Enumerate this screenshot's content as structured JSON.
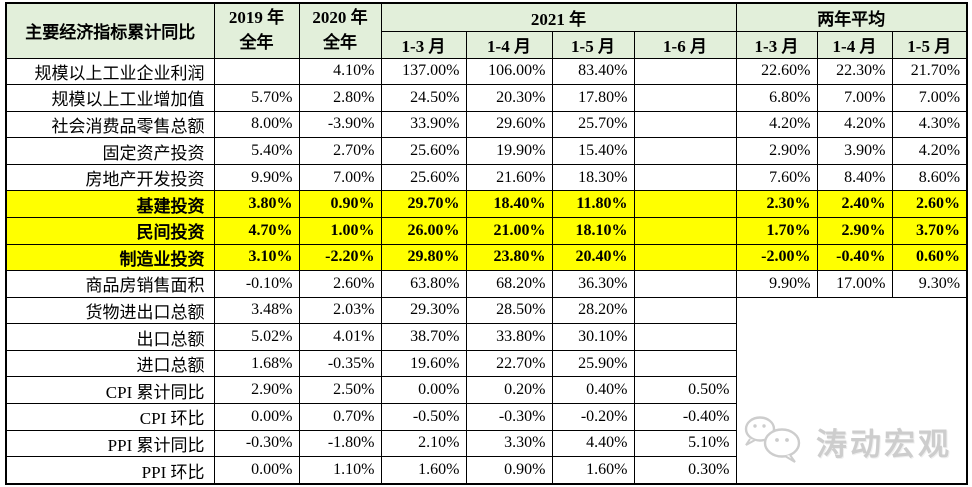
{
  "colors": {
    "header_bg": "#e2efda",
    "highlight_bg": "#ffff00",
    "border": "#000000",
    "watermark_color": "#cdcdcd"
  },
  "chart_data": {
    "type": "table",
    "title": "主要经济指标累计同比",
    "header": {
      "corner": "主要经济指标累计同比",
      "y2019_line1": "2019 年",
      "y2019_line2": "全年",
      "y2020_line1": "2020 年",
      "y2020_line2": "全年",
      "group2021": "2021 年",
      "groupAvg": "两年平均",
      "months2021": [
        "1-3 月",
        "1-4 月",
        "1-5 月",
        "1-6 月"
      ],
      "monthsAvg": [
        "1-3 月",
        "1-4 月",
        "1-5 月"
      ]
    },
    "columns": [
      "2019 年全年",
      "2020 年全年",
      "2021 年 1-3 月",
      "2021 年 1-4 月",
      "2021 年 1-5 月",
      "2021 年 1-6 月",
      "两年平均 1-3 月",
      "两年平均 1-4 月",
      "两年平均 1-5 月"
    ],
    "rows": [
      {
        "label": "规模以上工业企业利润",
        "highlight": false,
        "values": [
          "",
          "4.10%",
          "137.00%",
          "106.00%",
          "83.40%",
          "",
          "22.60%",
          "22.30%",
          "21.70%"
        ]
      },
      {
        "label": "规模以上工业增加值",
        "highlight": false,
        "values": [
          "5.70%",
          "2.80%",
          "24.50%",
          "20.30%",
          "17.80%",
          "",
          "6.80%",
          "7.00%",
          "7.00%"
        ]
      },
      {
        "label": "社会消费品零售总额",
        "highlight": false,
        "values": [
          "8.00%",
          "-3.90%",
          "33.90%",
          "29.60%",
          "25.70%",
          "",
          "4.20%",
          "4.20%",
          "4.30%"
        ]
      },
      {
        "label": "固定资产投资",
        "highlight": false,
        "values": [
          "5.40%",
          "2.70%",
          "25.60%",
          "19.90%",
          "15.40%",
          "",
          "2.90%",
          "3.90%",
          "4.20%"
        ]
      },
      {
        "label": "房地产开发投资",
        "highlight": false,
        "values": [
          "9.90%",
          "7.00%",
          "25.60%",
          "21.60%",
          "18.30%",
          "",
          "7.60%",
          "8.40%",
          "8.60%"
        ]
      },
      {
        "label": "基建投资",
        "highlight": true,
        "values": [
          "3.80%",
          "0.90%",
          "29.70%",
          "18.40%",
          "11.80%",
          "",
          "2.30%",
          "2.40%",
          "2.60%"
        ]
      },
      {
        "label": "民间投资",
        "highlight": true,
        "values": [
          "4.70%",
          "1.00%",
          "26.00%",
          "21.00%",
          "18.10%",
          "",
          "1.70%",
          "2.90%",
          "3.70%"
        ]
      },
      {
        "label": "制造业投资",
        "highlight": true,
        "values": [
          "3.10%",
          "-2.20%",
          "29.80%",
          "23.80%",
          "20.40%",
          "",
          "-2.00%",
          "-0.40%",
          "0.60%"
        ]
      },
      {
        "label": "商品房销售面积",
        "highlight": false,
        "values": [
          "-0.10%",
          "2.60%",
          "63.80%",
          "68.20%",
          "36.30%",
          "",
          "9.90%",
          "17.00%",
          "9.30%"
        ]
      },
      {
        "label": "货物进出口总额",
        "highlight": false,
        "merged_avg_start": true,
        "values": [
          "3.48%",
          "2.03%",
          "29.30%",
          "28.50%",
          "28.20%",
          ""
        ]
      },
      {
        "label": "出口总额",
        "highlight": false,
        "values": [
          "5.02%",
          "4.01%",
          "38.70%",
          "33.80%",
          "30.10%",
          ""
        ]
      },
      {
        "label": "进口总额",
        "highlight": false,
        "values": [
          "1.68%",
          "-0.35%",
          "19.60%",
          "22.70%",
          "25.90%",
          ""
        ]
      },
      {
        "label": "CPI 累计同比",
        "highlight": false,
        "values": [
          "2.90%",
          "2.50%",
          "0.00%",
          "0.20%",
          "0.40%",
          "0.50%"
        ]
      },
      {
        "label": "CPI 环比",
        "highlight": false,
        "values": [
          "0.00%",
          "0.70%",
          "-0.50%",
          "-0.30%",
          "-0.20%",
          "-0.40%"
        ]
      },
      {
        "label": "PPI 累计同比",
        "highlight": false,
        "values": [
          "-0.30%",
          "-1.80%",
          "2.10%",
          "3.30%",
          "4.40%",
          "5.10%"
        ]
      },
      {
        "label": "PPI 环比",
        "highlight": false,
        "values": [
          "0.00%",
          "1.10%",
          "1.60%",
          "0.90%",
          "1.60%",
          "0.30%"
        ]
      }
    ]
  },
  "watermark": {
    "icon": "wechat-icon",
    "text": "涛动宏观"
  }
}
